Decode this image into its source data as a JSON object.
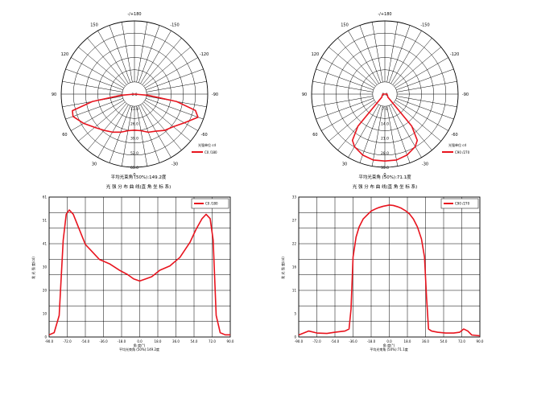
{
  "polar_charts": [
    {
      "angle_ticks": [
        "0",
        "30",
        "60",
        "90",
        "120",
        "150",
        "-/+180",
        "-150",
        "-120",
        "-90",
        "-60",
        "-30"
      ],
      "radial_labels": [
        "0.0",
        "13.0",
        "26.0",
        "39.0",
        "52.0",
        "65.0"
      ],
      "legend_title": "光强单位  cd",
      "legend_label": "C0  /180",
      "average_label": "平均光束角 (50%):149.2度",
      "subtitle": "光 强 分 布 曲 线(直 角 坐 标 系)"
    },
    {
      "angle_ticks": [
        "0",
        "30",
        "60",
        "90",
        "120",
        "150",
        "-/+180",
        "-150",
        "-120",
        "-90",
        "-60",
        "-30"
      ],
      "radial_labels": [
        "0.0",
        "7.0",
        "14.0",
        "21.0",
        "28.0",
        "35.0"
      ],
      "legend_title": "光强单位  cd",
      "legend_label": "C90  /270",
      "average_label": "平均光束角 (50%):71.1度",
      "subtitle": "光 强 分 布 曲 线(直 角 坐 标 系)"
    }
  ],
  "chart_data": [
    {
      "type": "line",
      "polar": true,
      "legend": "C0  /180",
      "r_max": 65,
      "angles": [
        -90,
        -85,
        -80,
        -75,
        -70,
        -60,
        -50,
        -40,
        -30,
        -20,
        -10,
        0,
        10,
        20,
        30,
        40,
        50,
        60,
        70,
        75,
        80,
        85,
        90
      ],
      "values": [
        0,
        12,
        38,
        56,
        60,
        51,
        45,
        42,
        38,
        36,
        33,
        32,
        33,
        36,
        39,
        42,
        46,
        52,
        58,
        57,
        38,
        12,
        0
      ]
    },
    {
      "type": "line",
      "polar": true,
      "legend": "C90  /270",
      "r_max": 35,
      "angles": [
        -90,
        -60,
        -45,
        -40,
        -35,
        -30,
        -20,
        -10,
        0,
        10,
        20,
        30,
        35,
        40,
        45,
        60,
        90
      ],
      "values": [
        1,
        1.5,
        2,
        20,
        27,
        29,
        31,
        32,
        32,
        32,
        31,
        29,
        27,
        20,
        2,
        1.5,
        1
      ]
    },
    {
      "type": "line",
      "legend": "C0  /180",
      "xlabel": "角 度(°)",
      "ylabel": "发 光 强 度(cd)",
      "average_label": "平均光束角 (50%):149.2度",
      "xlim": [
        -90,
        90
      ],
      "ylim": [
        0,
        65
      ],
      "xticks": [
        "-90.0",
        "-72.0",
        "-54.0",
        "-36.0",
        "-18.0",
        "0.0",
        "18.0",
        "36.0",
        "54.0",
        "72.0",
        "90.0"
      ],
      "yticks": [
        "0",
        "10",
        "20",
        "30",
        "41",
        "51",
        "61"
      ],
      "x": [
        -90,
        -85,
        -80,
        -76,
        -73,
        -70,
        -66,
        -60,
        -54,
        -46,
        -40,
        -30,
        -20,
        -12,
        -6,
        0,
        6,
        12,
        20,
        30,
        40,
        50,
        56,
        62,
        66,
        70,
        73,
        76,
        80,
        85,
        90
      ],
      "y": [
        1,
        2,
        10,
        45,
        57,
        59,
        57,
        50,
        43,
        39,
        36,
        34,
        31,
        29,
        27,
        26,
        27,
        28,
        31,
        33,
        37,
        44,
        50,
        55,
        57,
        55,
        45,
        10,
        2,
        1,
        1
      ]
    },
    {
      "type": "line",
      "legend": "C90  /270",
      "xlabel": "角 度(°)",
      "ylabel": "发 光 强 度(cd)",
      "average_label": "平均光束角 (50%):71.1度",
      "xlim": [
        -90,
        90
      ],
      "ylim": [
        0,
        35
      ],
      "xticks": [
        "-90.0",
        "-72.0",
        "-54.0",
        "-36.0",
        "-18.0",
        "0.0",
        "18.0",
        "36.0",
        "54.0",
        "72.0",
        "90.0"
      ],
      "yticks": [
        "0",
        "5",
        "11",
        "16",
        "22",
        "27",
        "33"
      ],
      "x": [
        -90,
        -80,
        -72,
        -62,
        -54,
        -44,
        -40,
        -38,
        -36,
        -33,
        -30,
        -26,
        -22,
        -18,
        -14,
        -10,
        -6,
        -2,
        0,
        4,
        8,
        12,
        16,
        20,
        24,
        28,
        32,
        35,
        37,
        39,
        42,
        48,
        56,
        64,
        70,
        74,
        78,
        82,
        90
      ],
      "y": [
        0.5,
        1.5,
        1,
        0.9,
        1.2,
        1.5,
        2,
        7,
        20,
        25,
        27.5,
        29.5,
        30.5,
        31.5,
        32,
        32.4,
        32.7,
        32.9,
        33,
        32.9,
        32.6,
        32.2,
        31.6,
        30.8,
        29.5,
        27.5,
        24.5,
        20,
        10,
        2,
        1.5,
        1.2,
        1,
        1,
        1.2,
        2,
        1.5,
        0.5,
        0.3
      ]
    }
  ]
}
